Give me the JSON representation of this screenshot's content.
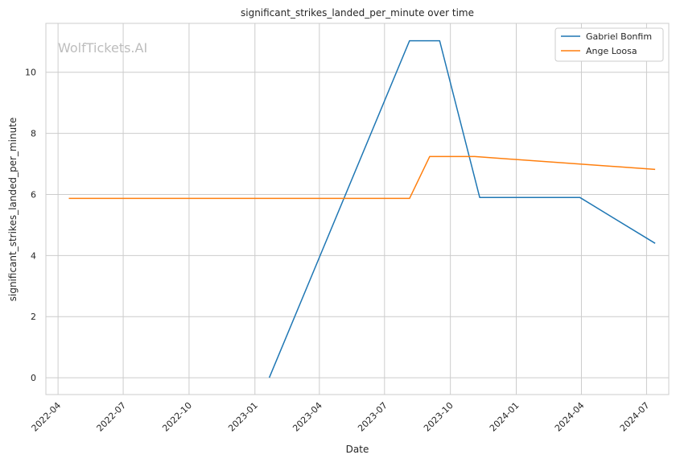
{
  "chart_data": {
    "type": "line",
    "title": "significant_strikes_landed_per_minute over time",
    "xlabel": "Date",
    "ylabel": "significant_strikes_landed_per_minute",
    "watermark": "WolfTickets.AI",
    "x_ticks": [
      "2022-04",
      "2022-07",
      "2022-10",
      "2023-01",
      "2023-04",
      "2023-07",
      "2023-10",
      "2024-01",
      "2024-04",
      "2024-07"
    ],
    "y_ticks": [
      0,
      2,
      4,
      6,
      8,
      10
    ],
    "xlim": [
      "2022-03-15",
      "2024-08-01"
    ],
    "ylim": [
      -0.55,
      11.6
    ],
    "grid": true,
    "legend_position": "top-right",
    "series": [
      {
        "name": "Gabriel Bonfim",
        "color": "#1f77b4",
        "points": [
          {
            "x": "2023-01-21",
            "y": 0.0
          },
          {
            "x": "2023-08-05",
            "y": 11.03
          },
          {
            "x": "2023-09-16",
            "y": 11.03
          },
          {
            "x": "2023-11-11",
            "y": 5.9
          },
          {
            "x": "2024-03-30",
            "y": 5.9
          },
          {
            "x": "2024-07-13",
            "y": 4.4
          }
        ]
      },
      {
        "name": "Ange Loosa",
        "color": "#ff7f0e",
        "points": [
          {
            "x": "2022-04-16",
            "y": 5.87
          },
          {
            "x": "2023-08-05",
            "y": 5.87
          },
          {
            "x": "2023-09-02",
            "y": 7.24
          },
          {
            "x": "2023-11-04",
            "y": 7.24
          },
          {
            "x": "2024-07-13",
            "y": 6.82
          }
        ]
      }
    ]
  }
}
